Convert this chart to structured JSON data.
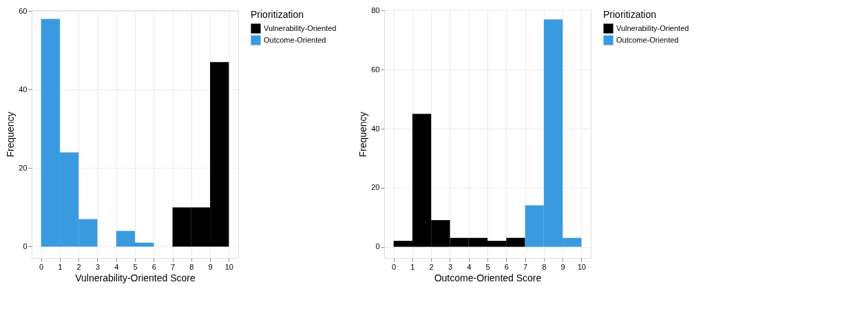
{
  "chart_data": [
    {
      "type": "histogram",
      "xlabel": "Vulnerability-Oriented Score",
      "ylabel": "Frequency",
      "legend_title": "Prioritization",
      "bins": [
        0,
        1,
        2,
        3,
        4,
        5,
        6,
        7,
        8,
        9,
        10
      ],
      "series": [
        {
          "name": "Vulnerability-Oriented",
          "color": "#000000",
          "values": [
            null,
            null,
            null,
            null,
            null,
            null,
            null,
            10,
            10,
            47
          ]
        },
        {
          "name": "Outcome-Oriented",
          "color": "#3a9ae0",
          "values": [
            58,
            24,
            7,
            0,
            4,
            1,
            0,
            null,
            null,
            null
          ]
        }
      ],
      "xlim": [
        -0.5,
        10.5
      ],
      "ylim": [
        -2.9,
        60.2
      ],
      "xticks": [
        0,
        1,
        2,
        3,
        4,
        5,
        6,
        7,
        8,
        9,
        10
      ],
      "yticks": [
        0,
        20,
        40,
        60
      ],
      "grid": true,
      "legend": "right"
    },
    {
      "type": "histogram",
      "xlabel": "Outcome-Oriented Score",
      "ylabel": "Frequency",
      "legend_title": "Prioritization",
      "bins": [
        0,
        1,
        2,
        3,
        4,
        5,
        6,
        7,
        8,
        9,
        10
      ],
      "series": [
        {
          "name": "Vulnerability-Oriented",
          "color": "#000000",
          "values": [
            2,
            45,
            9,
            3,
            3,
            2,
            3,
            null,
            null,
            null
          ]
        },
        {
          "name": "Outcome-Oriented",
          "color": "#3a9ae0",
          "values": [
            null,
            null,
            null,
            null,
            null,
            null,
            null,
            14,
            77,
            3
          ]
        }
      ],
      "xlim": [
        -0.5,
        10.5
      ],
      "ylim": [
        -3.8,
        80.1
      ],
      "xticks": [
        0,
        1,
        2,
        3,
        4,
        5,
        6,
        7,
        8,
        9,
        10
      ],
      "yticks": [
        0,
        20,
        40,
        60,
        80
      ],
      "grid": true,
      "legend": "right"
    }
  ]
}
